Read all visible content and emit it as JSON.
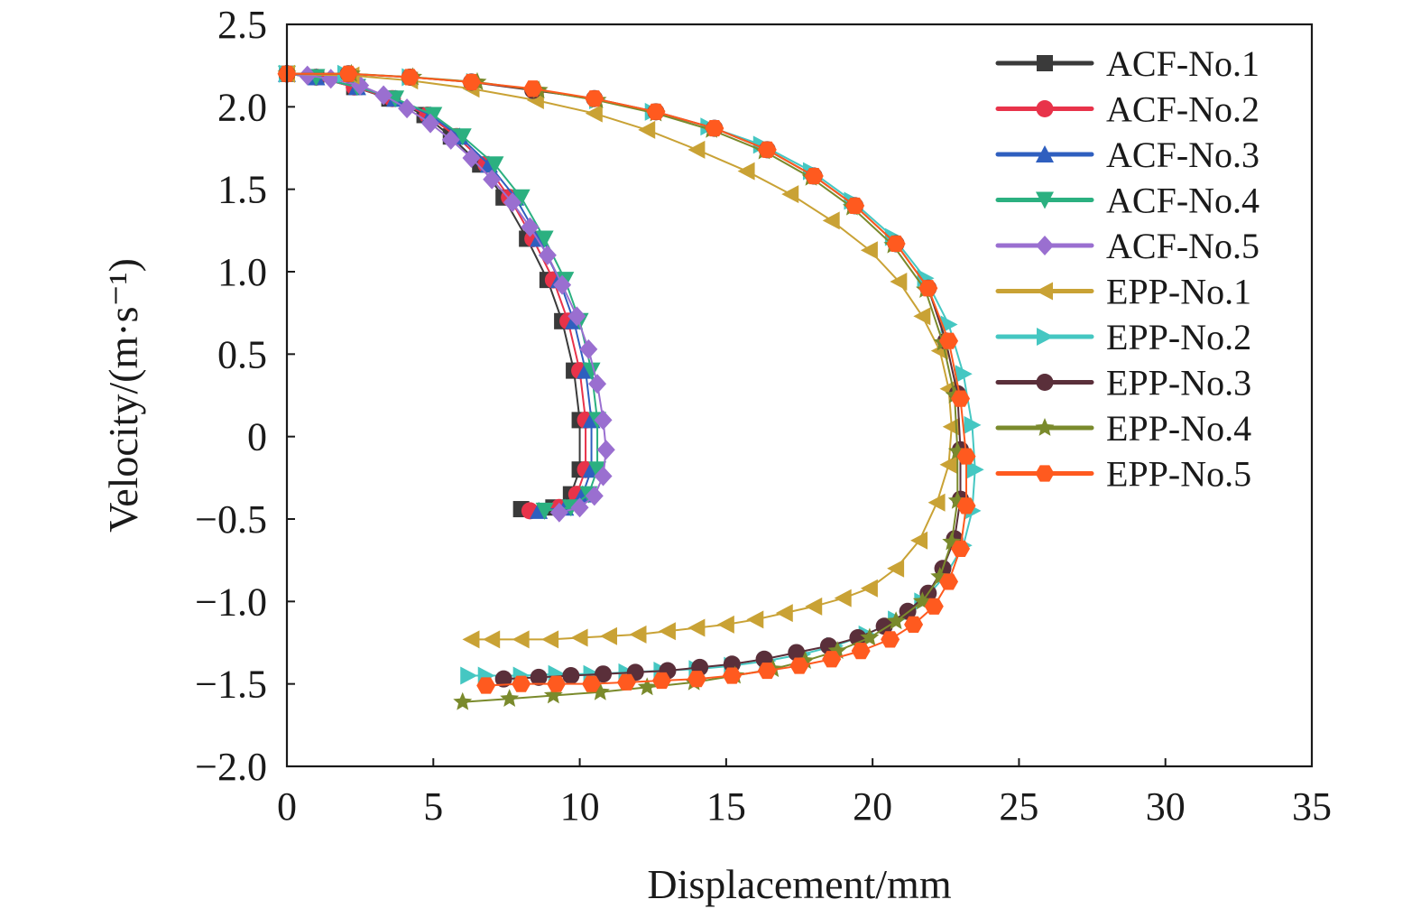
{
  "chart_data": {
    "type": "line",
    "title": "",
    "xlabel": "Displacement/mm",
    "ylabel": "Velocity/(m·s⁻¹)",
    "xlim": [
      0,
      35
    ],
    "ylim": [
      -2.0,
      2.5
    ],
    "xticks": [
      0,
      5,
      10,
      15,
      20,
      25,
      30,
      35
    ],
    "xtick_labels": [
      "0",
      "5",
      "10",
      "15",
      "20",
      "25",
      "30",
      "35"
    ],
    "yticks": [
      2.5,
      2.0,
      1.5,
      1.0,
      0.5,
      0,
      -0.5,
      -1.0,
      -1.5,
      -2.0
    ],
    "ytick_labels": [
      "2.5",
      "2.0",
      "1.5",
      "1.0",
      "0.5",
      "0",
      "−0.5",
      "−1.0",
      "−1.5",
      "−2.0"
    ],
    "grid": false,
    "legend_position": "top-right",
    "series": [
      {
        "name": "ACF-No.1",
        "color": "#3a3a3a",
        "marker": "square",
        "x": [
          0,
          1.0,
          2.3,
          3.5,
          4.7,
          5.6,
          6.6,
          7.4,
          8.2,
          8.9,
          9.4,
          9.8,
          10.0,
          10.0,
          9.7,
          9.1,
          8.0
        ],
        "y": [
          2.2,
          2.18,
          2.12,
          2.05,
          1.95,
          1.82,
          1.65,
          1.45,
          1.2,
          0.95,
          0.7,
          0.4,
          0.1,
          -0.2,
          -0.35,
          -0.43,
          -0.44
        ]
      },
      {
        "name": "ACF-No.2",
        "color": "#e8334a",
        "marker": "circle",
        "x": [
          0,
          1.0,
          2.3,
          3.6,
          4.8,
          5.8,
          6.8,
          7.6,
          8.4,
          9.1,
          9.6,
          10.0,
          10.2,
          10.2,
          9.9,
          9.3,
          8.3
        ],
        "y": [
          2.2,
          2.18,
          2.12,
          2.05,
          1.95,
          1.82,
          1.65,
          1.45,
          1.2,
          0.95,
          0.7,
          0.4,
          0.1,
          -0.2,
          -0.35,
          -0.43,
          -0.45
        ]
      },
      {
        "name": "ACF-No.3",
        "color": "#2f5fbf",
        "marker": "triangle-up",
        "x": [
          0,
          1.0,
          2.4,
          3.7,
          4.9,
          5.9,
          6.9,
          7.8,
          8.6,
          9.3,
          9.8,
          10.2,
          10.4,
          10.4,
          10.1,
          9.5,
          8.6
        ],
        "y": [
          2.2,
          2.18,
          2.12,
          2.05,
          1.95,
          1.82,
          1.65,
          1.45,
          1.2,
          0.95,
          0.7,
          0.4,
          0.1,
          -0.2,
          -0.35,
          -0.43,
          -0.45
        ]
      },
      {
        "name": "ACF-No.4",
        "color": "#2bb080",
        "marker": "triangle-down",
        "x": [
          0,
          1.0,
          2.4,
          3.7,
          5.0,
          6.0,
          7.1,
          8.0,
          8.8,
          9.5,
          10.0,
          10.4,
          10.6,
          10.6,
          10.3,
          9.7,
          8.8
        ],
        "y": [
          2.2,
          2.18,
          2.12,
          2.05,
          1.95,
          1.82,
          1.65,
          1.45,
          1.2,
          0.95,
          0.7,
          0.4,
          0.1,
          -0.2,
          -0.35,
          -0.43,
          -0.45
        ]
      },
      {
        "name": "ACF-No.5",
        "color": "#9a6fd0",
        "marker": "diamond",
        "x": [
          0,
          0.7,
          1.5,
          2.5,
          3.3,
          4.1,
          4.9,
          5.6,
          6.3,
          7.0,
          7.7,
          8.3,
          8.9,
          9.4,
          9.9,
          10.3,
          10.6,
          10.8,
          10.9,
          10.8,
          10.5,
          10.0,
          9.3
        ],
        "y": [
          2.2,
          2.19,
          2.17,
          2.13,
          2.07,
          1.99,
          1.9,
          1.8,
          1.69,
          1.56,
          1.42,
          1.27,
          1.1,
          0.92,
          0.73,
          0.53,
          0.32,
          0.1,
          -0.08,
          -0.24,
          -0.36,
          -0.43,
          -0.46
        ]
      },
      {
        "name": "EPP-No.1",
        "color": "#c9a235",
        "marker": "triangle-left",
        "x": [
          0,
          2.2,
          4.2,
          6.3,
          8.5,
          10.5,
          12.3,
          14.0,
          15.7,
          17.2,
          18.6,
          19.9,
          20.9,
          21.7,
          22.3,
          22.6,
          22.7,
          22.6,
          22.2,
          21.6,
          20.8,
          19.9,
          19.0,
          18.0,
          17.0,
          16.0,
          15.0,
          14.0,
          13.0,
          12.0,
          11.0,
          10.0,
          9.0,
          8.0,
          7.0,
          6.3
        ],
        "y": [
          2.2,
          2.19,
          2.16,
          2.11,
          2.04,
          1.96,
          1.86,
          1.74,
          1.61,
          1.47,
          1.31,
          1.13,
          0.94,
          0.73,
          0.52,
          0.29,
          0.06,
          -0.17,
          -0.4,
          -0.63,
          -0.8,
          -0.92,
          -0.98,
          -1.03,
          -1.07,
          -1.11,
          -1.14,
          -1.16,
          -1.18,
          -1.2,
          -1.21,
          -1.22,
          -1.23,
          -1.23,
          -1.23,
          -1.23
        ]
      },
      {
        "name": "EPP-No.2",
        "color": "#45c7c2",
        "marker": "triangle-right",
        "x": [
          0,
          2.0,
          4.2,
          6.4,
          8.6,
          10.6,
          12.5,
          14.4,
          16.2,
          17.9,
          19.3,
          20.7,
          21.8,
          22.6,
          23.1,
          23.4,
          23.5,
          23.4,
          23.1,
          22.5,
          21.7,
          20.8,
          19.8,
          18.7,
          17.6,
          16.4,
          15.2,
          14.0,
          12.8,
          11.6,
          10.4,
          9.2,
          8.0,
          6.8,
          6.2
        ],
        "y": [
          2.2,
          2.2,
          2.18,
          2.15,
          2.1,
          2.04,
          1.97,
          1.88,
          1.77,
          1.61,
          1.43,
          1.21,
          0.96,
          0.68,
          0.38,
          0.07,
          -0.2,
          -0.45,
          -0.66,
          -0.84,
          -1.0,
          -1.11,
          -1.2,
          -1.27,
          -1.32,
          -1.36,
          -1.39,
          -1.41,
          -1.42,
          -1.43,
          -1.44,
          -1.44,
          -1.45,
          -1.45,
          -1.45
        ]
      },
      {
        "name": "EPP-No.3",
        "color": "#5a2f3a",
        "marker": "circle",
        "x": [
          0,
          2.1,
          4.2,
          6.3,
          8.4,
          10.5,
          12.6,
          14.6,
          16.4,
          18.0,
          19.4,
          20.8,
          21.9,
          22.5,
          22.9,
          23.0,
          23.0,
          22.8,
          22.4,
          21.9,
          21.2,
          20.4,
          19.5,
          18.5,
          17.4,
          16.3,
          15.2,
          14.1,
          13.0,
          11.9,
          10.8,
          9.7,
          8.6,
          7.4
        ],
        "y": [
          2.2,
          2.2,
          2.18,
          2.15,
          2.1,
          2.05,
          1.97,
          1.87,
          1.74,
          1.58,
          1.4,
          1.17,
          0.9,
          0.58,
          0.26,
          -0.08,
          -0.38,
          -0.62,
          -0.8,
          -0.95,
          -1.06,
          -1.15,
          -1.22,
          -1.27,
          -1.31,
          -1.35,
          -1.38,
          -1.4,
          -1.42,
          -1.43,
          -1.44,
          -1.45,
          -1.46,
          -1.47
        ]
      },
      {
        "name": "EPP-No.4",
        "color": "#7a8a2c",
        "marker": "star",
        "x": [
          0,
          2.2,
          4.3,
          6.5,
          8.6,
          10.6,
          12.6,
          14.5,
          16.3,
          17.9,
          19.3,
          20.7,
          21.8,
          22.4,
          22.8,
          22.9,
          22.9,
          22.7,
          22.3,
          21.7,
          20.8,
          19.9,
          18.8,
          17.7,
          16.6,
          15.3,
          13.9,
          12.3,
          10.7,
          9.1,
          7.6,
          6.0
        ],
        "y": [
          2.2,
          2.2,
          2.18,
          2.15,
          2.1,
          2.04,
          1.96,
          1.86,
          1.73,
          1.57,
          1.39,
          1.16,
          0.89,
          0.57,
          0.25,
          -0.09,
          -0.39,
          -0.64,
          -0.85,
          -1.0,
          -1.12,
          -1.22,
          -1.3,
          -1.36,
          -1.41,
          -1.45,
          -1.49,
          -1.52,
          -1.55,
          -1.57,
          -1.59,
          -1.61
        ]
      },
      {
        "name": "EPP-No.5",
        "color": "#ff5a1f",
        "marker": "hexagon",
        "x": [
          0,
          2.1,
          4.2,
          6.3,
          8.4,
          10.5,
          12.6,
          14.6,
          16.4,
          18.0,
          19.4,
          20.8,
          21.9,
          22.6,
          23.0,
          23.2,
          23.2,
          23.0,
          22.6,
          22.1,
          21.4,
          20.6,
          19.6,
          18.6,
          17.5,
          16.4,
          15.2,
          14.0,
          12.8,
          11.6,
          10.4,
          9.2,
          8.0,
          6.8
        ],
        "y": [
          2.2,
          2.2,
          2.18,
          2.15,
          2.11,
          2.05,
          1.97,
          1.87,
          1.74,
          1.58,
          1.4,
          1.17,
          0.9,
          0.58,
          0.23,
          -0.12,
          -0.42,
          -0.68,
          -0.88,
          -1.03,
          -1.14,
          -1.23,
          -1.3,
          -1.35,
          -1.39,
          -1.42,
          -1.45,
          -1.47,
          -1.48,
          -1.49,
          -1.5,
          -1.5,
          -1.5,
          -1.51
        ]
      }
    ]
  }
}
